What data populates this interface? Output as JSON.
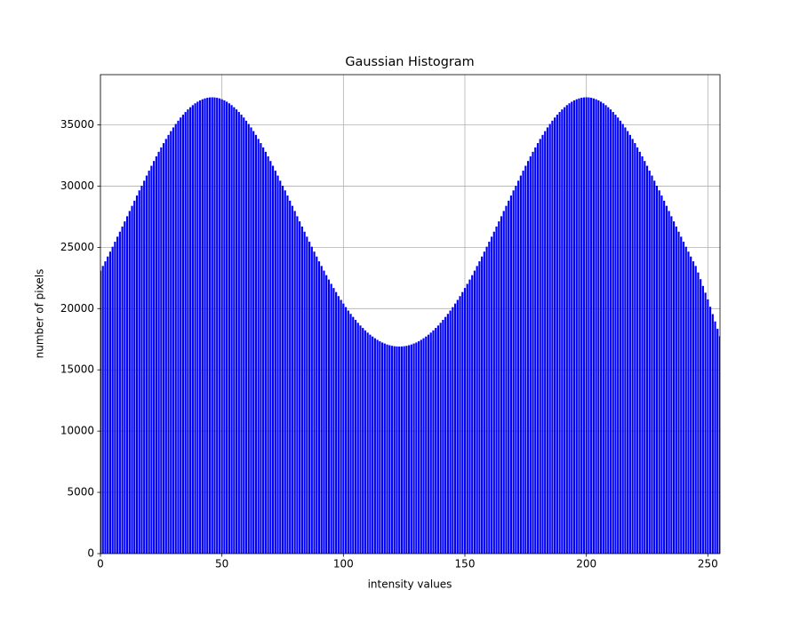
{
  "chart_data": {
    "type": "bar",
    "title": "Gaussian Histogram",
    "x_label": "intensity values",
    "y_label": "number of pixels",
    "color": "#0000ff",
    "grid": true,
    "xlim": [
      0,
      255
    ],
    "ylim": [
      0,
      39100
    ],
    "xticks": [
      0,
      50,
      100,
      150,
      200,
      250
    ],
    "yticks": [
      0,
      5000,
      10000,
      15000,
      20000,
      25000,
      30000,
      35000
    ],
    "x": [
      0,
      1,
      2,
      3,
      4,
      5,
      6,
      7,
      8,
      9,
      10,
      11,
      12,
      13,
      14,
      15,
      16,
      17,
      18,
      19,
      20,
      21,
      22,
      23,
      24,
      25,
      26,
      27,
      28,
      29,
      30,
      31,
      32,
      33,
      34,
      35,
      36,
      37,
      38,
      39,
      40,
      41,
      42,
      43,
      44,
      45,
      46,
      47,
      48,
      49,
      50,
      51,
      52,
      53,
      54,
      55,
      56,
      57,
      58,
      59,
      60,
      61,
      62,
      63,
      64,
      65,
      66,
      67,
      68,
      69,
      70,
      71,
      72,
      73,
      74,
      75,
      76,
      77,
      78,
      79,
      80,
      81,
      82,
      83,
      84,
      85,
      86,
      87,
      88,
      89,
      90,
      91,
      92,
      93,
      94,
      95,
      96,
      97,
      98,
      99,
      100,
      101,
      102,
      103,
      104,
      105,
      106,
      107,
      108,
      109,
      110,
      111,
      112,
      113,
      114,
      115,
      116,
      117,
      118,
      119,
      120,
      121,
      122,
      123,
      124,
      125,
      126,
      127,
      128,
      129,
      130,
      131,
      132,
      133,
      134,
      135,
      136,
      137,
      138,
      139,
      140,
      141,
      142,
      143,
      144,
      145,
      146,
      147,
      148,
      149,
      150,
      151,
      152,
      153,
      154,
      155,
      156,
      157,
      158,
      159,
      160,
      161,
      162,
      163,
      164,
      165,
      166,
      167,
      168,
      169,
      170,
      171,
      172,
      173,
      174,
      175,
      176,
      177,
      178,
      179,
      180,
      181,
      182,
      183,
      184,
      185,
      186,
      187,
      188,
      189,
      190,
      191,
      192,
      193,
      194,
      195,
      196,
      197,
      198,
      199,
      200,
      201,
      202,
      203,
      204,
      205,
      206,
      207,
      208,
      209,
      210,
      211,
      212,
      213,
      214,
      215,
      216,
      217,
      218,
      219,
      220,
      221,
      222,
      223,
      224,
      225,
      226,
      227,
      228,
      229,
      230,
      231,
      232,
      233,
      234,
      235,
      236,
      237,
      238,
      239,
      240,
      241,
      242,
      243,
      244,
      245,
      246,
      247,
      248,
      249,
      250,
      251,
      252,
      253,
      254,
      255
    ],
    "values": [
      23100,
      23480,
      23860,
      24250,
      24650,
      25050,
      25460,
      25870,
      26280,
      26700,
      27120,
      27540,
      27970,
      28390,
      28810,
      29230,
      29650,
      30030,
      30440,
      30860,
      31260,
      31660,
      32050,
      32430,
      32800,
      33160,
      33510,
      33850,
      34180,
      34490,
      34790,
      35070,
      35340,
      35600,
      35830,
      36050,
      36260,
      36440,
      36610,
      36760,
      36890,
      37000,
      37090,
      37160,
      37210,
      37240,
      37250,
      37240,
      37210,
      37160,
      37090,
      37000,
      36890,
      36760,
      36610,
      36440,
      36260,
      36050,
      35830,
      35600,
      35340,
      35070,
      34790,
      34490,
      34180,
      33850,
      33510,
      33160,
      32800,
      32430,
      32050,
      31660,
      31260,
      30860,
      30440,
      30030,
      29650,
      29230,
      28810,
      28390,
      27970,
      27540,
      27120,
      26700,
      26280,
      25870,
      25460,
      25050,
      24650,
      24250,
      23860,
      23480,
      23100,
      22730,
      22370,
      22020,
      21680,
      21350,
      21020,
      20710,
      20410,
      20120,
      19840,
      19570,
      19320,
      19080,
      18840,
      18620,
      18420,
      18220,
      18040,
      17870,
      17720,
      17580,
      17450,
      17330,
      17230,
      17150,
      17070,
      17010,
      16960,
      16930,
      16910,
      16900,
      16910,
      16930,
      16960,
      17010,
      17070,
      17150,
      17230,
      17330,
      17450,
      17580,
      17720,
      17870,
      18040,
      18220,
      18420,
      18620,
      18840,
      19080,
      19320,
      19570,
      19840,
      20120,
      20410,
      20710,
      21020,
      21350,
      21680,
      22020,
      22370,
      22730,
      23100,
      23480,
      23860,
      24250,
      24650,
      25050,
      25460,
      25870,
      26280,
      26700,
      27120,
      27540,
      27970,
      28390,
      28810,
      29230,
      29650,
      30030,
      30440,
      30860,
      31260,
      31660,
      32050,
      32430,
      32800,
      33160,
      33510,
      33850,
      34180,
      34490,
      34790,
      35070,
      35340,
      35600,
      35830,
      36050,
      36260,
      36440,
      36610,
      36760,
      36890,
      37000,
      37090,
      37160,
      37210,
      37240,
      37250,
      37240,
      37210,
      37160,
      37090,
      37000,
      36890,
      36760,
      36610,
      36440,
      36260,
      36050,
      35830,
      35600,
      35340,
      35070,
      34790,
      34490,
      34180,
      33850,
      33510,
      33160,
      32800,
      32430,
      32050,
      31660,
      31260,
      30860,
      30440,
      30030,
      29650,
      29230,
      28810,
      28390,
      27970,
      27540,
      27120,
      26700,
      26280,
      25870,
      25460,
      25050,
      24650,
      24250,
      23860,
      23480,
      22950,
      22400,
      21850,
      21300,
      20750,
      20150,
      19550,
      18950,
      18350,
      17750
    ]
  }
}
